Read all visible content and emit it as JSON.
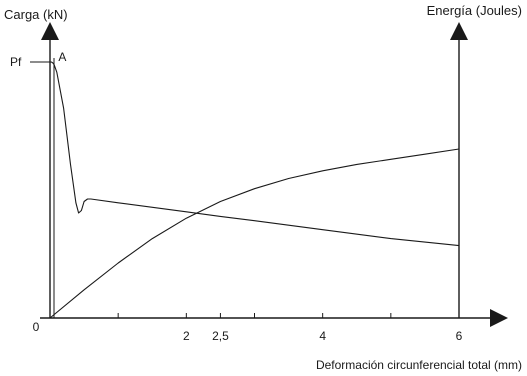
{
  "chart_data": {
    "type": "line",
    "xlabel": "Deformación circunferencial total (mm)",
    "ylabel_left": "Carga (kN)",
    "ylabel_right": "Energía (Joules)",
    "origin_label": "0",
    "x_ticks": [
      {
        "value": 2,
        "label": "2"
      },
      {
        "value": 2.5,
        "label": "2,5"
      },
      {
        "value": 4,
        "label": "4"
      },
      {
        "value": 6,
        "label": "6"
      }
    ],
    "x_minor_ticks": [
      1,
      3,
      5
    ],
    "xlim": [
      0,
      6
    ],
    "y_markers": [
      {
        "label": "Pf",
        "value": 1.0
      }
    ],
    "point_labels": [
      {
        "label": "A",
        "x": 0.05,
        "y": 1.0
      }
    ],
    "ylim": [
      0,
      1.0
    ],
    "series": [
      {
        "x": [
          0.0,
          0.02,
          0.04,
          0.06,
          0.1,
          0.2,
          0.3,
          0.38,
          0.42,
          0.46,
          0.5,
          0.55,
          0.6,
          1.0,
          2.0,
          2.5,
          3.0,
          4.0,
          5.0,
          6.0
        ],
        "values": [
          1.0,
          1.0,
          0.997,
          0.99,
          0.96,
          0.82,
          0.6,
          0.45,
          0.41,
          0.42,
          0.455,
          0.465,
          0.465,
          0.45,
          0.415,
          0.397,
          0.38,
          0.345,
          0.31,
          0.283
        ]
      },
      {
        "x": [
          0.0,
          0.5,
          1.0,
          1.5,
          2.0,
          2.5,
          3.0,
          3.5,
          4.0,
          4.5,
          5.0,
          5.5,
          6.0
        ],
        "values": [
          0.0,
          0.11,
          0.215,
          0.31,
          0.39,
          0.455,
          0.505,
          0.545,
          0.575,
          0.6,
          0.62,
          0.64,
          0.66
        ]
      }
    ]
  }
}
